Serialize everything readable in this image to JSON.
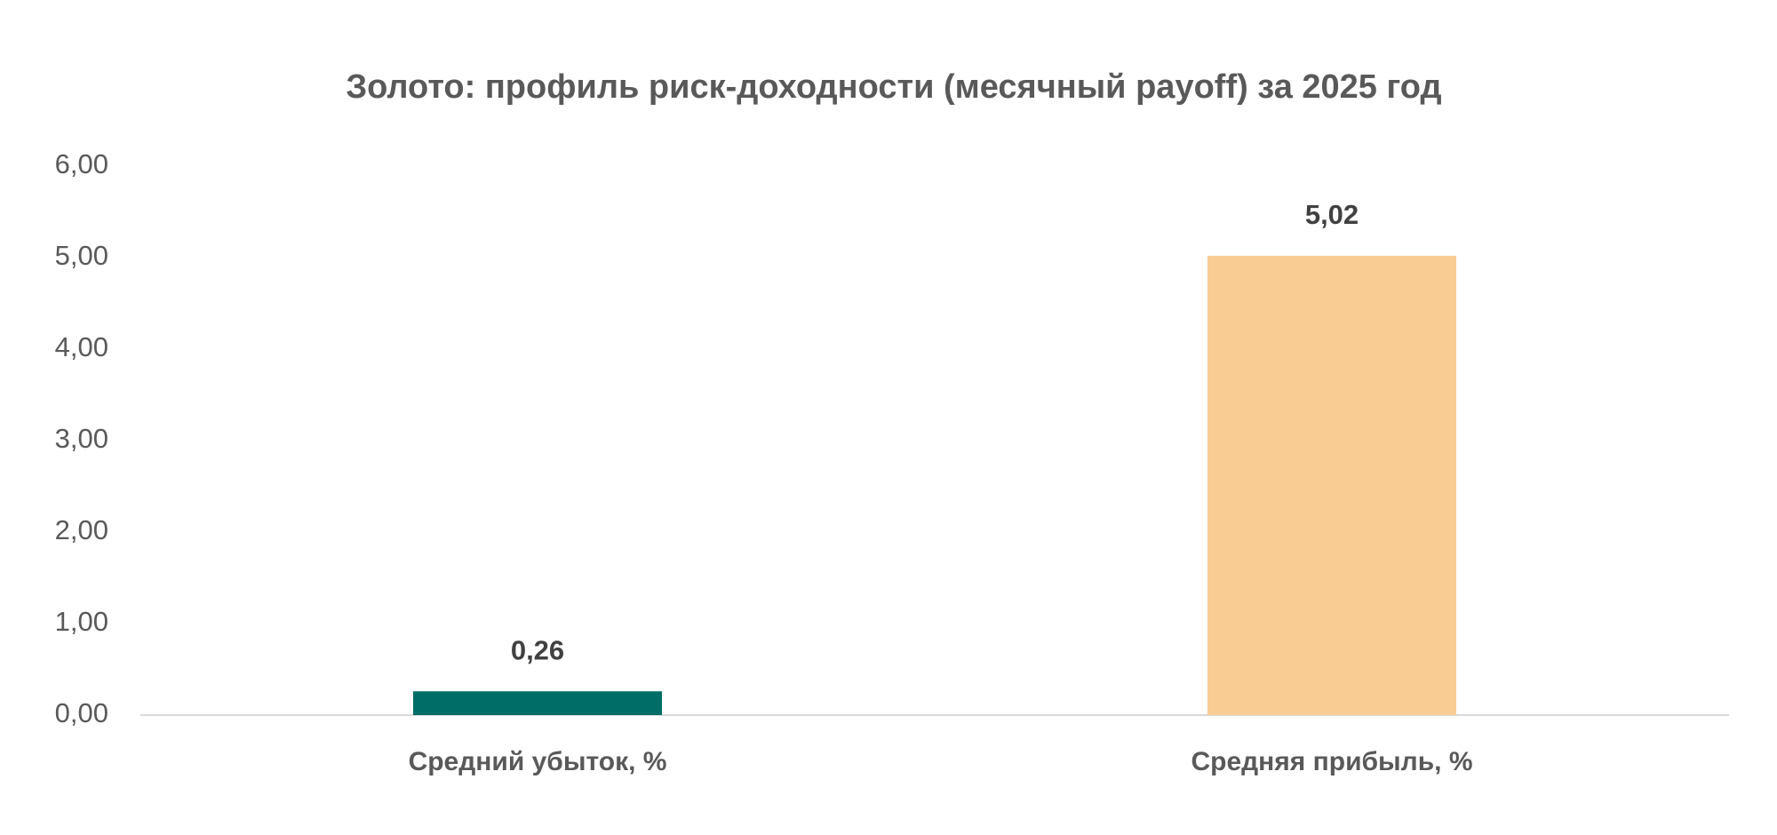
{
  "chart_data": {
    "type": "bar",
    "title": "Золото: профиль риск-доходности (месячный payoff) за 2025 год",
    "categories": [
      "Средний убыток, %",
      "Средняя прибыль, %"
    ],
    "values": [
      0.26,
      5.02
    ],
    "value_labels": [
      "0,26",
      "5,02"
    ],
    "colors": [
      "#006e66",
      "#f9cc94"
    ],
    "ylim": [
      0,
      6
    ],
    "yticks": [
      {
        "value": 0,
        "label": "0,00"
      },
      {
        "value": 1,
        "label": "1,00"
      },
      {
        "value": 2,
        "label": "2,00"
      },
      {
        "value": 3,
        "label": "3,00"
      },
      {
        "value": 4,
        "label": "4,00"
      },
      {
        "value": 5,
        "label": "5,00"
      },
      {
        "value": 6,
        "label": "6,00"
      }
    ],
    "grid": false
  }
}
